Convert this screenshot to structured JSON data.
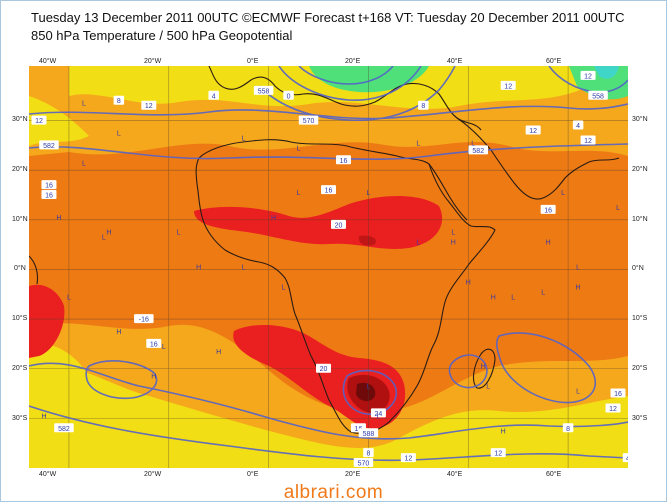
{
  "title": {
    "line1": "Tuesday 13 December 2011 00UTC ©ECMWF Forecast t+168 VT: Tuesday 20 December 2011 00UTC",
    "line2": "850 hPa Temperature / 500 hPa Geopotential"
  },
  "axes": {
    "longitude_labels": [
      "40°W",
      "20°W",
      "0°E",
      "20°E",
      "40°E",
      "60°E"
    ],
    "latitude_labels": [
      "30°N",
      "20°N",
      "10°N",
      "0°N",
      "10°S",
      "20°S",
      "30°S"
    ]
  },
  "contour_labels": [
    {
      "text": "12",
      "lon": -46,
      "lat": 30
    },
    {
      "text": "8",
      "lon": -30,
      "lat": 34
    },
    {
      "text": "12",
      "lon": -24,
      "lat": 33
    },
    {
      "text": "582",
      "lon": -44,
      "lat": 25
    },
    {
      "text": "16",
      "lon": -44,
      "lat": 17
    },
    {
      "text": "16",
      "lon": -44,
      "lat": 15
    },
    {
      "text": "4",
      "lon": -11,
      "lat": 35
    },
    {
      "text": "0",
      "lon": 4,
      "lat": 35
    },
    {
      "text": "558",
      "lon": -1,
      "lat": 36
    },
    {
      "text": "570",
      "lon": 8,
      "lat": 30
    },
    {
      "text": "16",
      "lon": 15,
      "lat": 22
    },
    {
      "text": "16",
      "lon": 12,
      "lat": 16
    },
    {
      "text": "20",
      "lon": 14,
      "lat": 9
    },
    {
      "text": "8",
      "lon": 31,
      "lat": 33
    },
    {
      "text": "582",
      "lon": 42,
      "lat": 24
    },
    {
      "text": "12",
      "lon": 48,
      "lat": 37
    },
    {
      "text": "12",
      "lon": 53,
      "lat": 28
    },
    {
      "text": "16",
      "lon": 56,
      "lat": 12
    },
    {
      "text": "12",
      "lon": 64,
      "lat": 39
    },
    {
      "text": "558",
      "lon": 66,
      "lat": 35
    },
    {
      "text": "4",
      "lon": 62,
      "lat": 29
    },
    {
      "text": "12",
      "lon": 64,
      "lat": 26
    },
    {
      "text": "-16",
      "lon": -25,
      "lat": -10
    },
    {
      "text": "16",
      "lon": -23,
      "lat": -15
    },
    {
      "text": "20",
      "lon": 11,
      "lat": -20
    },
    {
      "text": "24",
      "lon": 22,
      "lat": -29
    },
    {
      "text": "582",
      "lon": -41,
      "lat": -32
    },
    {
      "text": "16",
      "lon": 18,
      "lat": -32
    },
    {
      "text": "588",
      "lon": 20,
      "lat": -33
    },
    {
      "text": "8",
      "lon": 20,
      "lat": -37
    },
    {
      "text": "570",
      "lon": 19,
      "lat": -39
    },
    {
      "text": "12",
      "lon": 28,
      "lat": -38
    },
    {
      "text": "12",
      "lon": 46,
      "lat": -37
    },
    {
      "text": "16",
      "lon": 70,
      "lat": -25
    },
    {
      "text": "12",
      "lon": 69,
      "lat": -28
    },
    {
      "text": "8",
      "lon": 60,
      "lat": -32
    },
    {
      "text": "4",
      "lon": 72,
      "lat": -38
    }
  ],
  "pressure_symbols": [
    {
      "type": "L",
      "lon": -37,
      "lat": 33
    },
    {
      "type": "L",
      "lon": -30,
      "lat": 27
    },
    {
      "type": "L",
      "lon": -37,
      "lat": 21
    },
    {
      "type": "H",
      "lon": -42,
      "lat": 10
    },
    {
      "type": "L",
      "lon": -33,
      "lat": 6
    },
    {
      "type": "H",
      "lon": -32,
      "lat": 7
    },
    {
      "type": "L",
      "lon": -18,
      "lat": 7
    },
    {
      "type": "H",
      "lon": -14,
      "lat": 0
    },
    {
      "type": "L",
      "lon": -5,
      "lat": 0
    },
    {
      "type": "L",
      "lon": 3,
      "lat": -4
    },
    {
      "type": "H",
      "lon": 1,
      "lat": 10
    },
    {
      "type": "L",
      "lon": 6,
      "lat": 15
    },
    {
      "type": "L",
      "lon": 20,
      "lat": 15
    },
    {
      "type": "L",
      "lon": -5,
      "lat": 26
    },
    {
      "type": "L",
      "lon": 6,
      "lat": 24
    },
    {
      "type": "L",
      "lon": 30,
      "lat": 25
    },
    {
      "type": "L",
      "lon": 41,
      "lat": 25
    },
    {
      "type": "L",
      "lon": 37,
      "lat": 7
    },
    {
      "type": "L",
      "lon": 30,
      "lat": 5
    },
    {
      "type": "H",
      "lon": 37,
      "lat": 5
    },
    {
      "type": "H",
      "lon": 40,
      "lat": -3
    },
    {
      "type": "H",
      "lon": 45,
      "lat": -6
    },
    {
      "type": "L",
      "lon": 49,
      "lat": -6
    },
    {
      "type": "H",
      "lon": 62,
      "lat": -4
    },
    {
      "type": "L",
      "lon": 55,
      "lat": -5
    },
    {
      "type": "L",
      "lon": 62,
      "lat": 0
    },
    {
      "type": "H",
      "lon": 56,
      "lat": 5
    },
    {
      "type": "L",
      "lon": 59,
      "lat": 15
    },
    {
      "type": "L",
      "lon": 70,
      "lat": 12
    },
    {
      "type": "L",
      "lon": -40,
      "lat": -6
    },
    {
      "type": "H",
      "lon": -30,
      "lat": -13
    },
    {
      "type": "L",
      "lon": -21,
      "lat": -16
    },
    {
      "type": "H",
      "lon": -10,
      "lat": -17
    },
    {
      "type": "H",
      "lon": -23,
      "lat": -22
    },
    {
      "type": "L",
      "lon": 20,
      "lat": -24
    },
    {
      "type": "L",
      "lon": 22,
      "lat": -30
    },
    {
      "type": "H",
      "lon": 43,
      "lat": -20
    },
    {
      "type": "L",
      "lon": 44,
      "lat": -24
    },
    {
      "type": "L",
      "lon": 62,
      "lat": -25
    },
    {
      "type": "H",
      "lon": 47,
      "lat": -33
    },
    {
      "type": "H",
      "lon": -45,
      "lat": -30
    }
  ],
  "watermark": "albrari.com",
  "colors": {
    "ocean_cool": "#f2de14",
    "light_orange": "#f5a81c",
    "orange": "#ee7a14",
    "deep_orange": "#f0601a",
    "red": "#ea2020",
    "dark_red": "#b01010",
    "cold_green": "#4fe07a",
    "contour": "#5563c9",
    "coast": "#2a1c14"
  }
}
